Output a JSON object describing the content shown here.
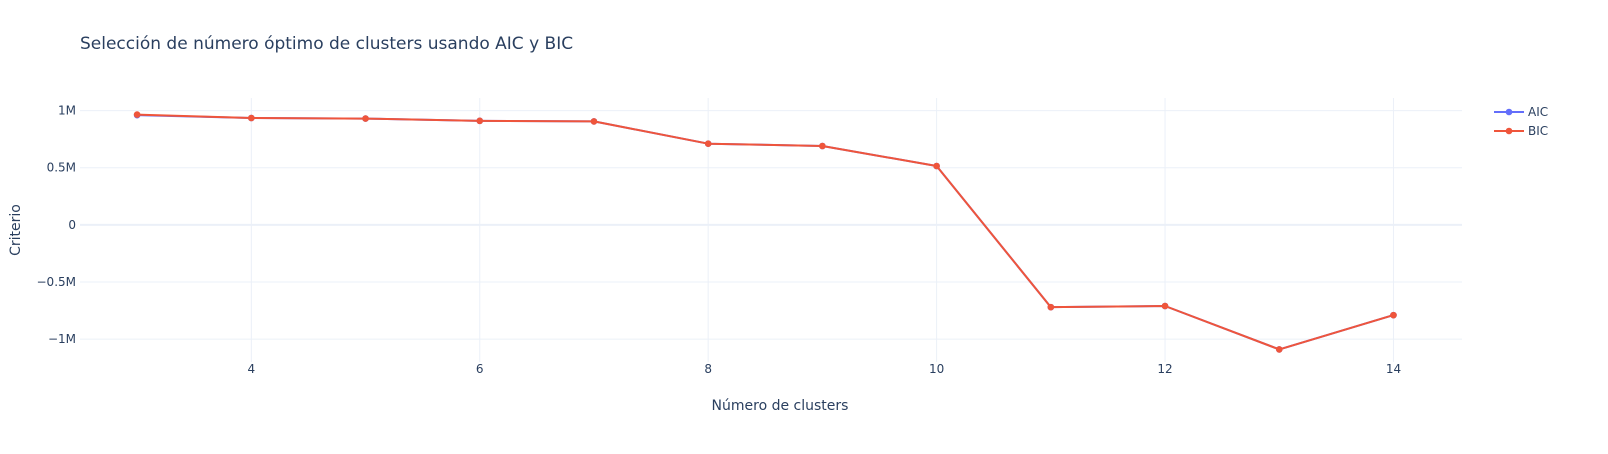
{
  "chart_data": {
    "type": "line",
    "title": "Selección de número óptimo de clusters usando AIC y BIC",
    "xlabel": "Número de clusters",
    "ylabel": "Criterio",
    "x": [
      3,
      4,
      5,
      6,
      7,
      8,
      9,
      10,
      11,
      12,
      13,
      14
    ],
    "xlim": [
      2.5,
      14.6
    ],
    "ylim": [
      -1.2,
      1.11
    ],
    "x_ticks": [
      4,
      6,
      8,
      10,
      12,
      14
    ],
    "x_tick_labels": [
      "4",
      "6",
      "8",
      "10",
      "12",
      "14"
    ],
    "y_ticks": [
      -1,
      -0.5,
      0,
      0.5,
      1
    ],
    "y_tick_labels": [
      "−1M",
      "−0.5M",
      "0",
      "0.5M",
      "1M"
    ],
    "y_unit": "millions",
    "grid": true,
    "legend_position": "top-right",
    "series": [
      {
        "name": "AIC",
        "color": "#636efa",
        "values": [
          0.96,
          0.935,
          0.93,
          0.91,
          0.905,
          0.71,
          0.69,
          0.515,
          -0.72,
          -0.71,
          -1.09,
          -0.79
        ]
      },
      {
        "name": "BIC",
        "color": "#ef553b",
        "values": [
          0.965,
          0.935,
          0.93,
          0.91,
          0.905,
          0.71,
          0.69,
          0.515,
          -0.72,
          -0.71,
          -1.09,
          -0.79
        ]
      }
    ]
  }
}
